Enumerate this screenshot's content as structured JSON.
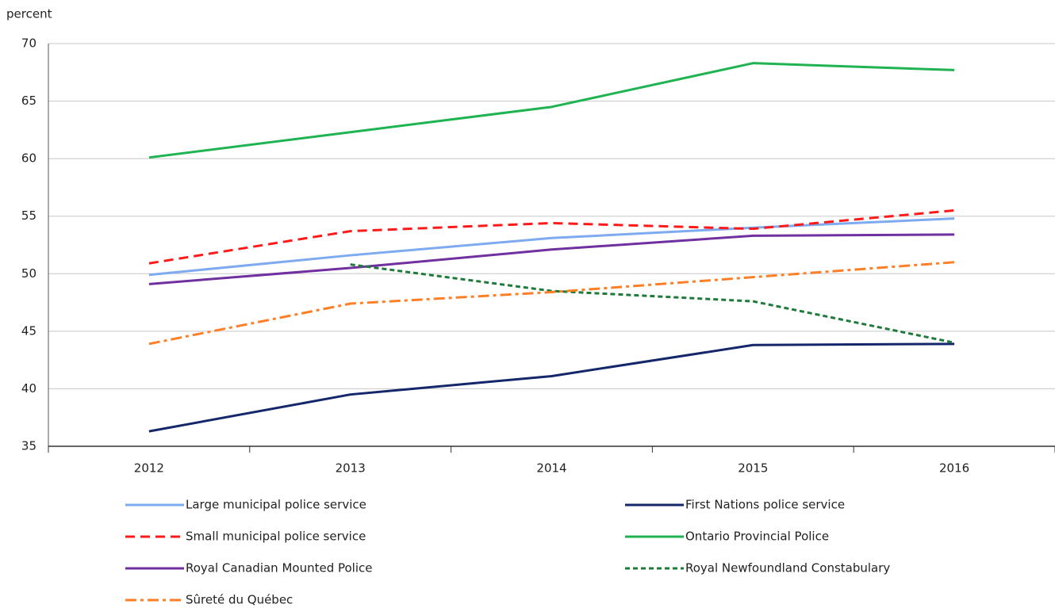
{
  "chart_data": {
    "type": "line",
    "y_axis_label": "percent",
    "categories": [
      "2012",
      "2013",
      "2014",
      "2015",
      "2016"
    ],
    "ylim": [
      35,
      70
    ],
    "yticks": [
      35,
      40,
      45,
      50,
      55,
      60,
      65,
      70
    ],
    "grid": true,
    "series": [
      {
        "name": "Large municipal police service",
        "color": "#7eaaf0",
        "dash": "solid",
        "values": [
          49.9,
          51.6,
          53.1,
          54.0,
          54.8
        ]
      },
      {
        "name": "First Nations police service",
        "color": "#14276a",
        "dash": "solid",
        "values": [
          36.3,
          39.5,
          41.1,
          43.8,
          43.9
        ]
      },
      {
        "name": "Small municipal police service",
        "color": "#ff1a1a",
        "dash": "dashed",
        "values": [
          50.9,
          53.7,
          54.4,
          53.9,
          55.5
        ]
      },
      {
        "name": "Ontario Provincial Police",
        "color": "#1fb352",
        "dash": "solid",
        "values": [
          60.1,
          62.3,
          64.5,
          68.3,
          67.7
        ]
      },
      {
        "name": "Royal Canadian Mounted Police",
        "color": "#7030a0",
        "dash": "solid",
        "values": [
          49.1,
          50.5,
          52.1,
          53.3,
          53.4
        ]
      },
      {
        "name": "Royal Newfoundland Constabulary",
        "color": "#1e7b3a",
        "dash": "dotted",
        "values": [
          null,
          50.8,
          48.5,
          47.6,
          44.0
        ]
      },
      {
        "name": "Sûreté du Québec",
        "color": "#ff7f27",
        "dash": "dashdot",
        "values": [
          43.9,
          47.4,
          48.4,
          49.7,
          51.0
        ]
      }
    ]
  }
}
